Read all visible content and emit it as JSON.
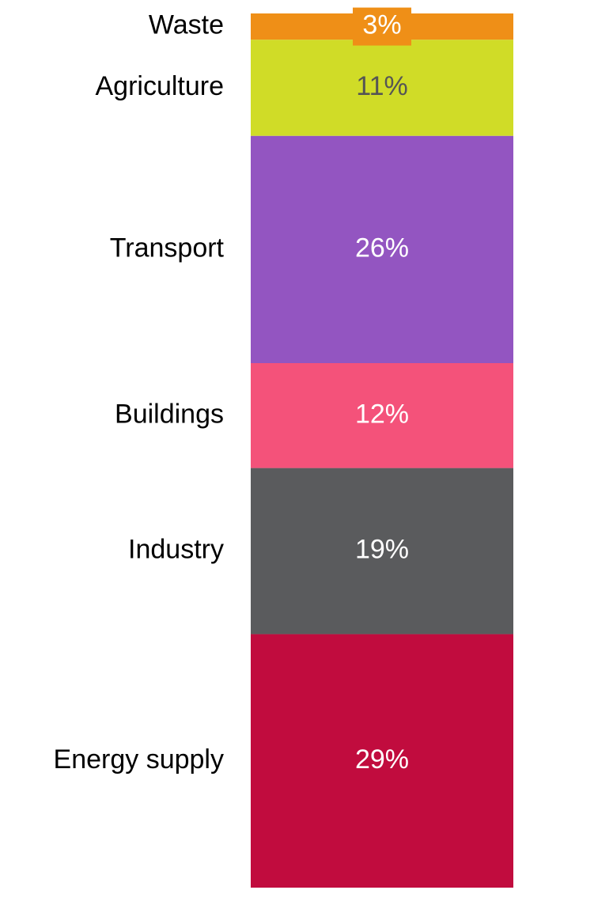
{
  "chart_data": {
    "type": "stacked-bar",
    "series": [
      {
        "name": "Energy supply",
        "color": "#c10c3e",
        "values": [
          29
        ],
        "value_labels": [
          "29%"
        ]
      },
      {
        "name": "Industry",
        "color": "#5a5b5d",
        "values": [
          19
        ],
        "value_labels": [
          "19%"
        ]
      },
      {
        "name": "Buildings",
        "color": "#f4527a",
        "values": [
          12
        ],
        "value_labels": [
          "12%"
        ]
      },
      {
        "name": "Transport",
        "color": "#9355c1",
        "values": [
          26
        ],
        "value_labels": [
          "26%"
        ]
      },
      {
        "name": "Agriculture",
        "color": "#d0dc27",
        "values": [
          11
        ],
        "value_labels": [
          "11%"
        ]
      },
      {
        "name": "Waste",
        "color": "#ef8f17",
        "values": [
          3
        ],
        "value_labels": [
          "3%"
        ]
      }
    ]
  }
}
